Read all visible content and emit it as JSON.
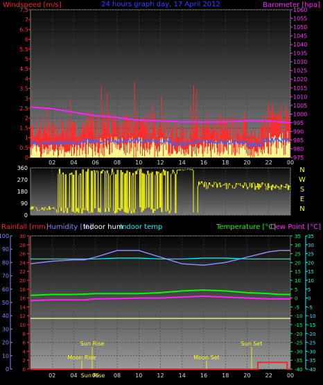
{
  "chart_data": [
    {
      "type": "line",
      "title": "24 hours graph day, 17 April 2012",
      "ylabel_left": "Windspeed [m/s]",
      "ylabel_right": "Barometer [hpa]",
      "left_ticks": [
        "0",
        "0.5",
        "1",
        "1.5",
        "2",
        "2.5",
        "3",
        "3.5",
        "4",
        "4.5",
        "5",
        "5.5",
        "6",
        "6.5",
        "7",
        "7.5"
      ],
      "right_ticks": [
        "975",
        "980",
        "985",
        "990",
        "995",
        "1000",
        "1005",
        "1010",
        "1015",
        "1020",
        "1025",
        "1030",
        "1035",
        "1040",
        "1045",
        "1050",
        "1055",
        "1060"
      ],
      "x_ticks": [
        "02",
        "04",
        "06",
        "08",
        "10",
        "12",
        "14",
        "16",
        "18",
        "20",
        "22",
        "00"
      ],
      "ylim_left": [
        0,
        7.5
      ],
      "ylim_right": [
        975,
        1060
      ],
      "barometer_x": [
        0,
        2,
        4,
        6,
        8,
        10,
        12,
        14,
        16,
        18,
        20,
        22,
        24
      ],
      "barometer": [
        1004,
        1003,
        1001,
        999,
        998,
        996.5,
        996,
        995.5,
        995.5,
        995.5,
        996,
        996,
        995
      ],
      "colors": {
        "gust": "#ff2a2a",
        "wind": "#ffff99",
        "avg": "#3366ff",
        "barometer": "#ff22ff"
      }
    },
    {
      "type": "scatter",
      "ylabel_right": [
        "N",
        "W",
        "S",
        "E",
        "N"
      ],
      "left_ticks": [
        "0",
        "90",
        "180",
        "270",
        "360"
      ],
      "ylim": [
        0,
        360
      ],
      "color": "#ffff00"
    },
    {
      "type": "line",
      "legend": [
        "Rainfall [mm]",
        "Humidity [%]",
        "Indoor hum",
        "Indoor temp",
        "Temperature [°C]",
        "Dew Point [°C]"
      ],
      "humidity_ticks": [
        "0",
        "10",
        "20",
        "30",
        "40",
        "50",
        "60",
        "70",
        "80",
        "90",
        "100"
      ],
      "rain_ticks": [
        "0",
        "2",
        "4",
        "6",
        "8",
        "10",
        "12",
        "14",
        "16",
        "18",
        "20",
        "22",
        "24",
        "26",
        "28",
        "30"
      ],
      "temp_ticks": [
        "35",
        "30",
        "25",
        "20",
        "15",
        "10",
        "5",
        "0",
        "-5",
        "-10",
        "-15",
        "-20",
        "-25",
        "-30",
        "-35",
        "-40"
      ],
      "ylim_humidity": [
        0,
        100
      ],
      "ylim_temp": [
        -40,
        35
      ],
      "x": [
        0,
        2,
        4,
        5,
        6,
        8,
        10,
        12,
        14,
        16,
        18,
        20,
        22,
        23,
        24
      ],
      "humidity": [
        79,
        81,
        82,
        82,
        84,
        89,
        89,
        84,
        79,
        78,
        80,
        84,
        88,
        89,
        89
      ],
      "temperature": [
        1.5,
        2,
        2,
        2.2,
        2.5,
        2.5,
        2.5,
        3,
        4,
        4.5,
        4,
        3,
        2.5,
        2,
        2
      ],
      "dew_point": [
        -1.5,
        -1,
        -1,
        -1,
        -0.5,
        -0.3,
        0,
        0,
        0.5,
        1,
        0.5,
        0,
        -0.5,
        -0.5,
        -0.5
      ],
      "indoor_hum": [
        38,
        38,
        38,
        38,
        38,
        38,
        38,
        38,
        38,
        38,
        38,
        38,
        38,
        38,
        38
      ],
      "indoor_temp": [
        22,
        22,
        22,
        22,
        22,
        22.5,
        22.5,
        22,
        22,
        22.5,
        22.5,
        22,
        22,
        22,
        22
      ],
      "rain_x": [
        0,
        21,
        21,
        23.7,
        23.7,
        24
      ],
      "rain": [
        0,
        0,
        1.5,
        1.5,
        0,
        0
      ],
      "annotations": [
        "Sun Rise",
        "Moon Rise",
        "Moon Set",
        "Sun Set",
        "Sun Rise"
      ],
      "colors": {
        "rain": "#ff2222",
        "humidity": "#8888ff",
        "indoor_hum": "#ffffff",
        "indoor_temp": "#00ffff",
        "temperature": "#00ff00",
        "dew_point": "#ff22ff",
        "sun": "#ffff00"
      }
    }
  ]
}
